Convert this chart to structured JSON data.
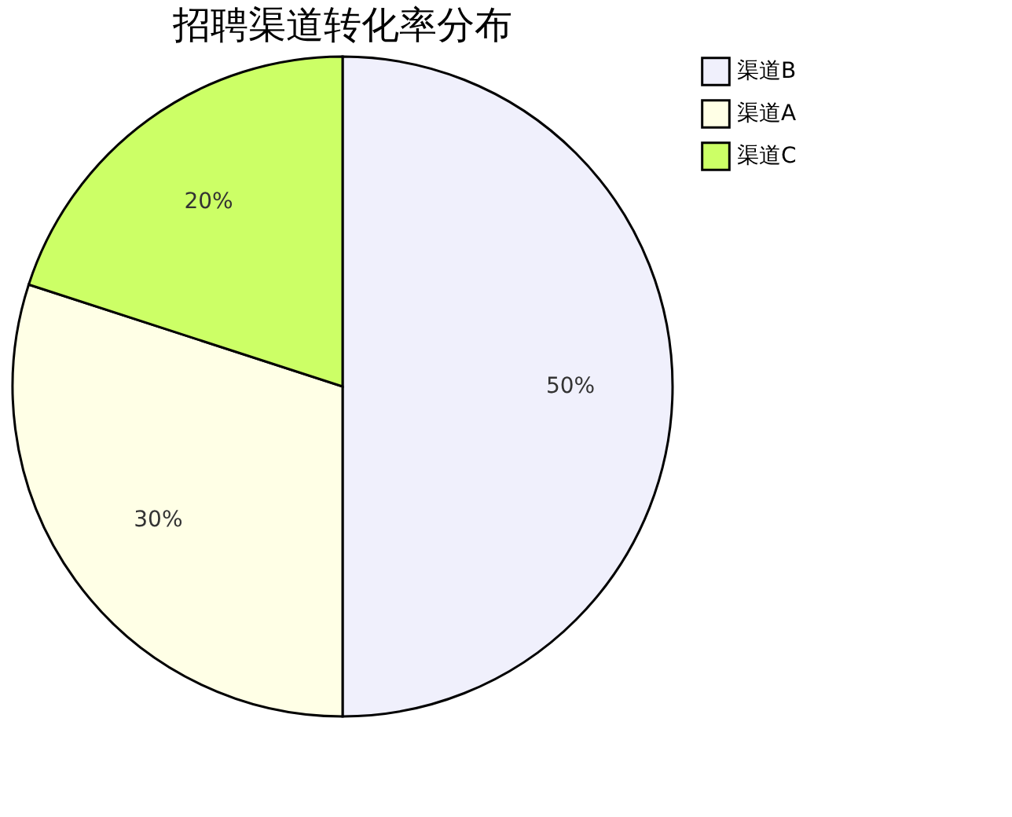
{
  "chart_data": {
    "type": "pie",
    "title": "招聘渠道转化率分布",
    "categories": [
      "渠道B",
      "渠道A",
      "渠道C"
    ],
    "values": [
      50,
      30,
      20
    ],
    "colors": [
      "#f0f0fc",
      "#ffffe6",
      "#ccff66"
    ],
    "value_labels": [
      "50%",
      "30%",
      "20%"
    ],
    "legend": "right"
  }
}
